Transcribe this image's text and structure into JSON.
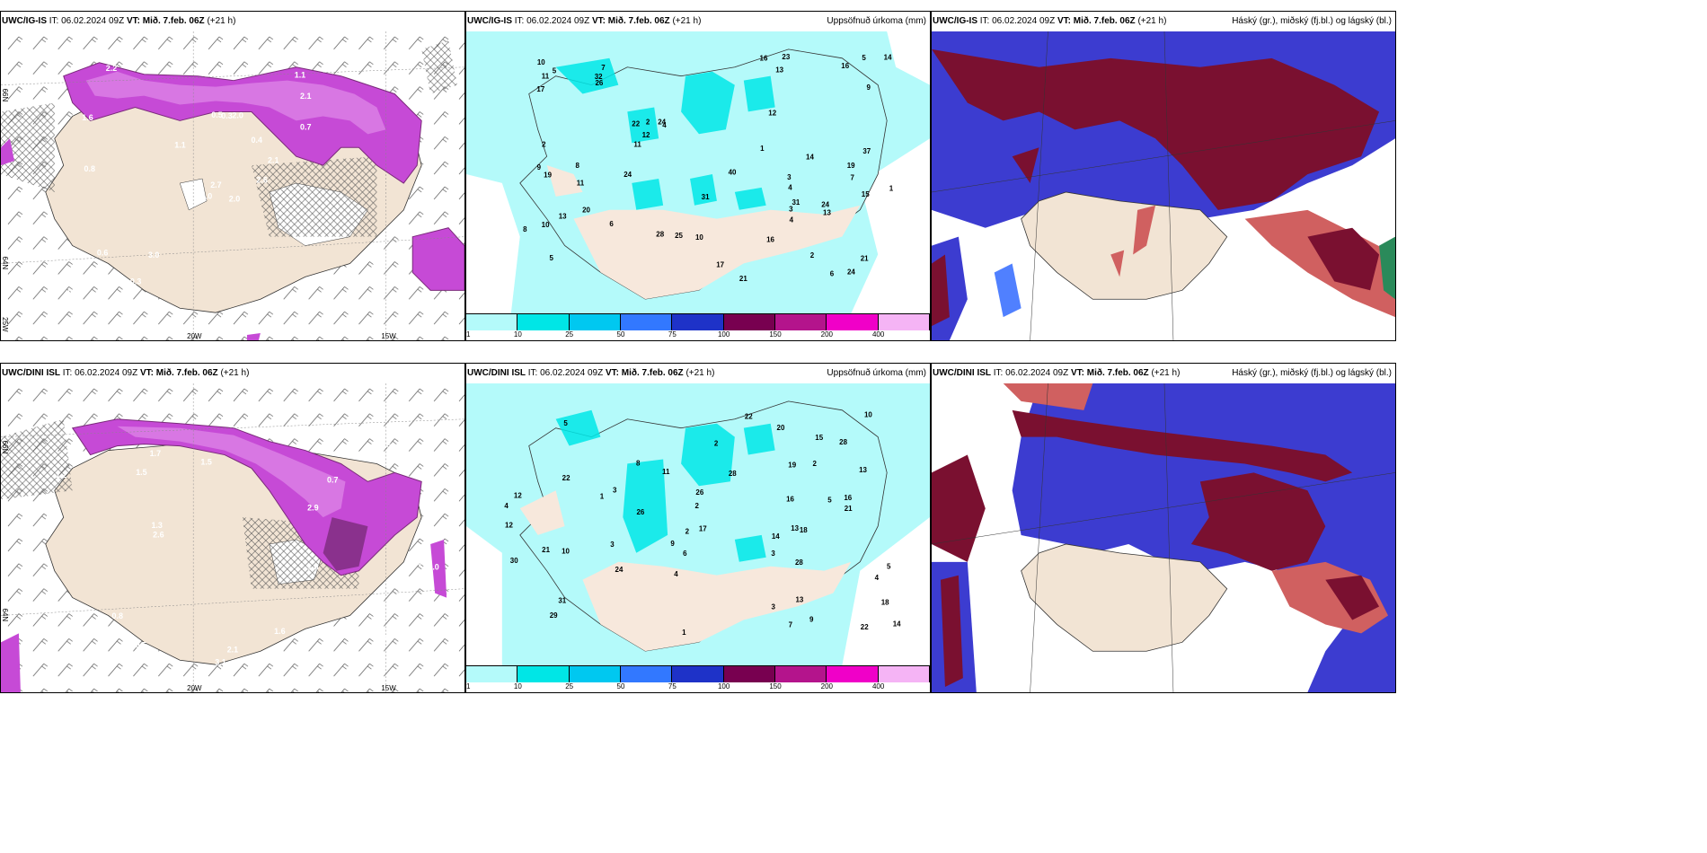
{
  "panels": [
    {
      "id": "p1",
      "model": "UWC/IG-IS",
      "it": "IT: 06.02.2024 09Z",
      "vt_prefix": "VT:",
      "vt": "Mið. 7.feb. 06Z",
      "lead": "(+21 h)",
      "right_title": "",
      "lat_labels": [
        "66N",
        "64N",
        "25W"
      ],
      "lon_labels": [
        "20W",
        "15W"
      ],
      "value_labels": [
        "2.0",
        "1.6",
        "2.7",
        "2.3",
        "2.1",
        "3.0",
        "1.1",
        "2.0",
        "2.1",
        "2.6",
        "2.2",
        "1.7",
        "0.8",
        "0.5",
        "1.0",
        "0.7",
        "0.3",
        "0.5",
        "0.4",
        "0.6",
        "1.1",
        "0.3",
        "0.3",
        "0.3"
      ]
    },
    {
      "id": "p2",
      "model": "UWC/IG-IS",
      "it": "IT: 06.02.2024 09Z",
      "vt_prefix": "VT:",
      "vt": "Mið. 7.feb. 06Z",
      "lead": "(+21 h)",
      "right_title": "Uppsöfnuð úrkoma (mm)",
      "value_labels": [
        "4",
        "7",
        "5",
        "7",
        "4",
        "2",
        "10",
        "13",
        "22",
        "21",
        "17",
        "9",
        "11",
        "21",
        "28",
        "37",
        "31",
        "40",
        "24",
        "20",
        "14",
        "16",
        "11",
        "15",
        "16",
        "32",
        "31",
        "19",
        "26",
        "14",
        "17",
        "16",
        "12",
        "24",
        "19",
        "13",
        "3",
        "8",
        "10",
        "13",
        "9",
        "23",
        "24",
        "25",
        "24",
        "6",
        "8",
        "5",
        "1",
        "2",
        "1",
        "2",
        "5",
        "3",
        "4",
        "6",
        "12",
        "10",
        "11"
      ],
      "legend": [
        "1",
        "10",
        "25",
        "50",
        "75",
        "100",
        "150",
        "200",
        "400"
      ]
    },
    {
      "id": "p3",
      "model": "UWC/IG-IS",
      "it": "IT: 06.02.2024 09Z",
      "vt_prefix": "VT:",
      "vt": "Mið. 7.feb. 06Z",
      "lead": "(+21 h)",
      "right_title": "Háský (gr.), miðský (fj.bl.) og lágský (bl.)"
    },
    {
      "id": "p4",
      "model": "UWC/DINI ISL",
      "it": "IT: 06.02.2024 09Z",
      "vt_prefix": "VT:",
      "vt": "Mið. 7.feb. 06Z",
      "lead": "(+21 h)",
      "right_title": "",
      "lat_labels": [
        "66N",
        "64N"
      ],
      "lon_labels": [
        "20W",
        "15W"
      ],
      "value_labels": [
        "1.2",
        "1.5",
        "2.9",
        "2.1",
        "2.0",
        "3.1",
        "1.8",
        "2.6",
        "1.5",
        "1.0",
        "0.5",
        "1.7",
        "0.7",
        "0.8",
        "0.6",
        "0.5",
        "1.3",
        "1.5",
        "0.5",
        "1.6",
        "1.1"
      ]
    },
    {
      "id": "p5",
      "model": "UWC/DINI ISL",
      "it": "IT: 06.02.2024 09Z",
      "vt_prefix": "VT:",
      "vt": "Mið. 7.feb. 06Z",
      "lead": "(+21 h)",
      "right_title": "Uppsöfnuð úrkoma (mm)",
      "value_labels": [
        "3",
        "5",
        "5",
        "4",
        "3",
        "2",
        "16",
        "26",
        "18",
        "9",
        "13",
        "14",
        "30",
        "28",
        "24",
        "22",
        "28",
        "21",
        "15",
        "11",
        "6",
        "12",
        "16",
        "20",
        "21",
        "31",
        "22",
        "19",
        "14",
        "10",
        "13",
        "22",
        "12",
        "13",
        "26",
        "29",
        "28",
        "17",
        "18",
        "7",
        "9",
        "3",
        "2",
        "1",
        "4",
        "8",
        "10",
        "3",
        "2",
        "5",
        "4",
        "1",
        "2"
      ],
      "legend": [
        "1",
        "10",
        "25",
        "50",
        "75",
        "100",
        "150",
        "200",
        "400"
      ]
    },
    {
      "id": "p6",
      "model": "UWC/DINI ISL",
      "it": "IT: 06.02.2024 09Z",
      "vt_prefix": "VT:",
      "vt": "Mið. 7.feb. 06Z",
      "lead": "(+21 h)",
      "right_title": "Háský (gr.), miðský (fj.bl.) og lágský (bl.)"
    }
  ],
  "colors": {
    "land": "#f2e4d4",
    "precip_light": "#b4fafa",
    "precip_mid": "#00e6e6",
    "snow_purple": "#c64ad6",
    "snow_dark": "#7a2a7a",
    "cloud_high": "#7a1030",
    "cloud_mid": "#3c3cd0",
    "cloud_low": "#5080ff",
    "legend": [
      "#b4fafa",
      "#00e6e6",
      "#00c8f0",
      "#3278ff",
      "#1e32c8",
      "#780050",
      "#b4148c",
      "#f000c8",
      "#f5b4f5"
    ]
  }
}
